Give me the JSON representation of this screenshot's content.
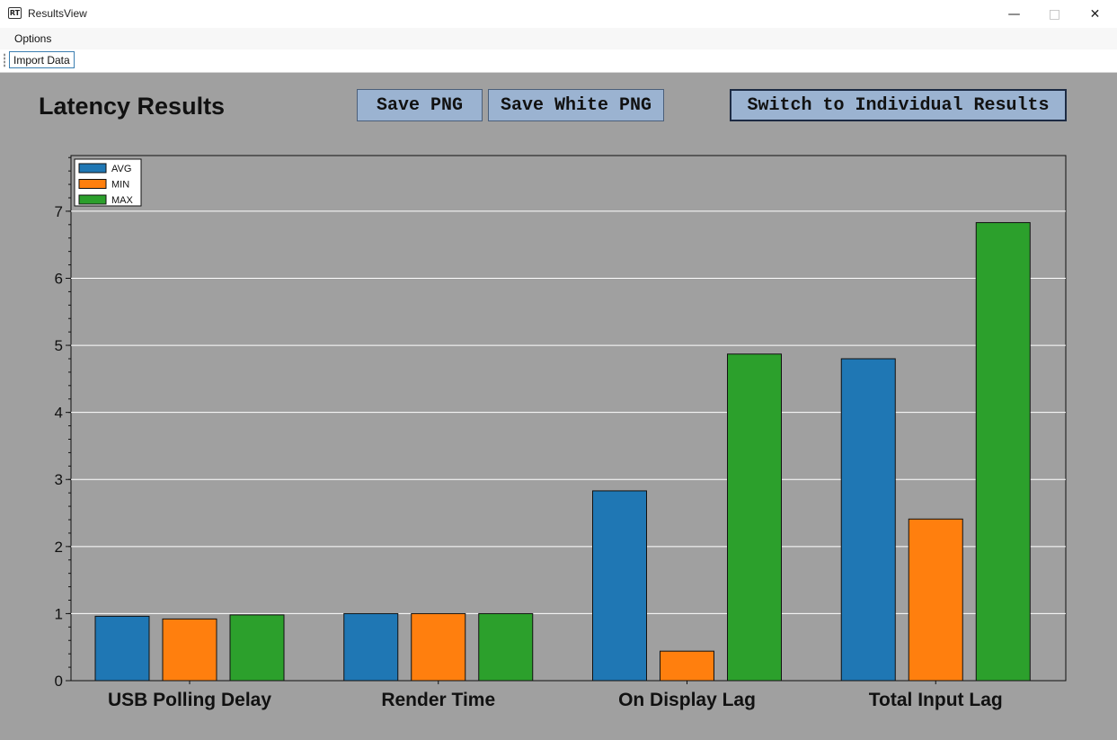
{
  "window": {
    "title": "ResultsView",
    "icon_text": "RT",
    "icon_name": "app-icon",
    "controls": [
      "minimize-icon",
      "maximize-icon",
      "close-icon"
    ]
  },
  "menu": {
    "items": [
      "Options"
    ]
  },
  "toolbar": {
    "import_label": "Import Data"
  },
  "header": {
    "title": "Latency Results",
    "save_png_label": "Save PNG",
    "save_white_png_label": "Save White PNG",
    "switch_label": "Switch to Individual Results"
  },
  "colors": {
    "background": "#a0a0a0",
    "button": "#9bb3d1",
    "avg": "#1f77b4",
    "min": "#ff7f0e",
    "max": "#2ca02c"
  },
  "chart_data": {
    "type": "bar",
    "title": "",
    "xlabel": "",
    "ylabel": "",
    "categories": [
      "USB Polling Delay",
      "Render Time",
      "On Display Lag",
      "Total Input Lag"
    ],
    "series": [
      {
        "name": "AVG",
        "color": "#1f77b4",
        "values": [
          0.96,
          1.0,
          2.83,
          4.8
        ]
      },
      {
        "name": "MIN",
        "color": "#ff7f0e",
        "values": [
          0.92,
          1.0,
          0.44,
          2.41
        ]
      },
      {
        "name": "MAX",
        "color": "#2ca02c",
        "values": [
          0.98,
          1.0,
          4.87,
          6.83
        ]
      }
    ],
    "yticks": [
      "0",
      "1",
      "2",
      "3",
      "4",
      "5",
      "6",
      "7"
    ],
    "ylim": [
      0,
      7.83
    ],
    "grid": true,
    "legend": "top-left"
  }
}
